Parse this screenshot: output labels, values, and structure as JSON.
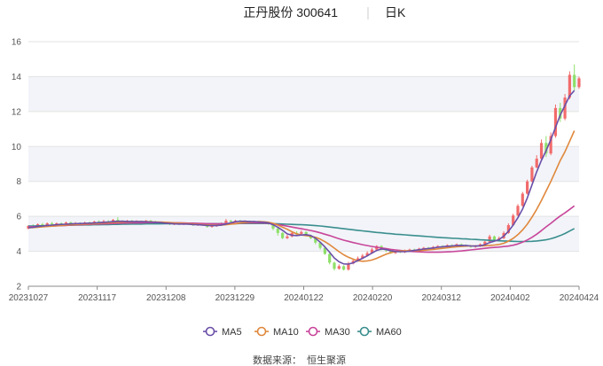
{
  "header": {
    "stock_label": "正丹股份 300641",
    "period_label": "日K"
  },
  "source": {
    "label": "数据来源：",
    "name": "恒生聚源"
  },
  "colors": {
    "up": "#f26b6b",
    "down": "#8ee06a",
    "ma5": "#6a4fa8",
    "ma10": "#e0883c",
    "ma30": "#c8469a",
    "ma60": "#3a8e8e",
    "grid": "#e3e3e3",
    "band": "#f2f4f9"
  },
  "chart_data": {
    "type": "candlestick",
    "ylim": [
      2,
      16
    ],
    "yticks": [
      2,
      4,
      6,
      8,
      10,
      12,
      14,
      16
    ],
    "xtick_labels": [
      "20231027",
      "20231117",
      "20231208",
      "20231229",
      "20240122",
      "20240220",
      "20240312",
      "20240402",
      "20240424"
    ],
    "legend": [
      "MA5",
      "MA10",
      "MA30",
      "MA60"
    ],
    "candles": [
      {
        "o": 5.3,
        "c": 5.45,
        "h": 5.5,
        "l": 5.25
      },
      {
        "o": 5.45,
        "c": 5.4,
        "h": 5.55,
        "l": 5.35
      },
      {
        "o": 5.4,
        "c": 5.55,
        "h": 5.6,
        "l": 5.35
      },
      {
        "o": 5.55,
        "c": 5.5,
        "h": 5.62,
        "l": 5.45
      },
      {
        "o": 5.5,
        "c": 5.6,
        "h": 5.65,
        "l": 5.45
      },
      {
        "o": 5.6,
        "c": 5.55,
        "h": 5.68,
        "l": 5.5
      },
      {
        "o": 5.55,
        "c": 5.6,
        "h": 5.65,
        "l": 5.5
      },
      {
        "o": 5.6,
        "c": 5.58,
        "h": 5.66,
        "l": 5.52
      },
      {
        "o": 5.58,
        "c": 5.65,
        "h": 5.7,
        "l": 5.52
      },
      {
        "o": 5.65,
        "c": 5.6,
        "h": 5.7,
        "l": 5.55
      },
      {
        "o": 5.6,
        "c": 5.62,
        "h": 5.68,
        "l": 5.55
      },
      {
        "o": 5.62,
        "c": 5.58,
        "h": 5.66,
        "l": 5.52
      },
      {
        "o": 5.58,
        "c": 5.65,
        "h": 5.7,
        "l": 5.55
      },
      {
        "o": 5.65,
        "c": 5.62,
        "h": 5.7,
        "l": 5.58
      },
      {
        "o": 5.62,
        "c": 5.7,
        "h": 5.75,
        "l": 5.58
      },
      {
        "o": 5.7,
        "c": 5.65,
        "h": 5.78,
        "l": 5.6
      },
      {
        "o": 5.65,
        "c": 5.72,
        "h": 5.8,
        "l": 5.6
      },
      {
        "o": 5.72,
        "c": 5.68,
        "h": 5.78,
        "l": 5.62
      },
      {
        "o": 5.68,
        "c": 5.8,
        "h": 5.85,
        "l": 5.65
      },
      {
        "o": 5.8,
        "c": 5.72,
        "h": 5.95,
        "l": 5.68
      },
      {
        "o": 5.72,
        "c": 5.7,
        "h": 5.78,
        "l": 5.65
      },
      {
        "o": 5.7,
        "c": 5.75,
        "h": 5.8,
        "l": 5.65
      },
      {
        "o": 5.75,
        "c": 5.7,
        "h": 5.8,
        "l": 5.65
      },
      {
        "o": 5.7,
        "c": 5.72,
        "h": 5.78,
        "l": 5.65
      },
      {
        "o": 5.72,
        "c": 5.68,
        "h": 5.76,
        "l": 5.62
      },
      {
        "o": 5.68,
        "c": 5.75,
        "h": 5.8,
        "l": 5.62
      },
      {
        "o": 5.75,
        "c": 5.7,
        "h": 5.8,
        "l": 5.65
      },
      {
        "o": 5.7,
        "c": 5.65,
        "h": 5.75,
        "l": 5.6
      },
      {
        "o": 5.65,
        "c": 5.62,
        "h": 5.7,
        "l": 5.55
      },
      {
        "o": 5.62,
        "c": 5.6,
        "h": 5.68,
        "l": 5.55
      },
      {
        "o": 5.6,
        "c": 5.55,
        "h": 5.65,
        "l": 5.5
      },
      {
        "o": 5.55,
        "c": 5.58,
        "h": 5.64,
        "l": 5.5
      },
      {
        "o": 5.58,
        "c": 5.55,
        "h": 5.62,
        "l": 5.5
      },
      {
        "o": 5.55,
        "c": 5.6,
        "h": 5.65,
        "l": 5.5
      },
      {
        "o": 5.6,
        "c": 5.55,
        "h": 5.65,
        "l": 5.5
      },
      {
        "o": 5.55,
        "c": 5.5,
        "h": 5.6,
        "l": 5.45
      },
      {
        "o": 5.5,
        "c": 5.55,
        "h": 5.6,
        "l": 5.45
      },
      {
        "o": 5.55,
        "c": 5.5,
        "h": 5.6,
        "l": 5.45
      },
      {
        "o": 5.5,
        "c": 5.4,
        "h": 5.55,
        "l": 5.35
      },
      {
        "o": 5.4,
        "c": 5.45,
        "h": 5.5,
        "l": 5.35
      },
      {
        "o": 5.45,
        "c": 5.5,
        "h": 5.55,
        "l": 5.4
      },
      {
        "o": 5.5,
        "c": 5.6,
        "h": 5.65,
        "l": 5.45
      },
      {
        "o": 5.6,
        "c": 5.75,
        "h": 5.85,
        "l": 5.55
      },
      {
        "o": 5.75,
        "c": 5.7,
        "h": 5.8,
        "l": 5.65
      },
      {
        "o": 5.7,
        "c": 5.75,
        "h": 5.8,
        "l": 5.65
      },
      {
        "o": 5.75,
        "c": 5.7,
        "h": 5.8,
        "l": 5.65
      },
      {
        "o": 5.7,
        "c": 5.72,
        "h": 5.78,
        "l": 5.65
      },
      {
        "o": 5.72,
        "c": 5.68,
        "h": 5.76,
        "l": 5.62
      },
      {
        "o": 5.68,
        "c": 5.7,
        "h": 5.75,
        "l": 5.62
      },
      {
        "o": 5.7,
        "c": 5.65,
        "h": 5.75,
        "l": 5.6
      },
      {
        "o": 5.65,
        "c": 5.6,
        "h": 5.7,
        "l": 5.55
      },
      {
        "o": 5.6,
        "c": 5.58,
        "h": 5.66,
        "l": 5.52
      },
      {
        "o": 5.58,
        "c": 5.3,
        "h": 5.6,
        "l": 5.2
      },
      {
        "o": 5.3,
        "c": 5.05,
        "h": 5.35,
        "l": 4.9
      },
      {
        "o": 5.05,
        "c": 4.75,
        "h": 5.1,
        "l": 4.7
      },
      {
        "o": 4.75,
        "c": 4.85,
        "h": 4.95,
        "l": 4.7
      },
      {
        "o": 4.85,
        "c": 5.05,
        "h": 5.15,
        "l": 4.8
      },
      {
        "o": 5.05,
        "c": 5.0,
        "h": 5.15,
        "l": 4.95
      },
      {
        "o": 5.0,
        "c": 5.1,
        "h": 5.2,
        "l": 4.95
      },
      {
        "o": 5.1,
        "c": 4.9,
        "h": 5.15,
        "l": 4.85
      },
      {
        "o": 4.9,
        "c": 4.75,
        "h": 4.95,
        "l": 4.7
      },
      {
        "o": 4.75,
        "c": 4.5,
        "h": 4.8,
        "l": 4.4
      },
      {
        "o": 4.5,
        "c": 4.2,
        "h": 4.55,
        "l": 4.1
      },
      {
        "o": 4.2,
        "c": 3.85,
        "h": 4.25,
        "l": 3.8
      },
      {
        "o": 3.85,
        "c": 3.35,
        "h": 3.9,
        "l": 3.25
      },
      {
        "o": 3.35,
        "c": 3.0,
        "h": 3.4,
        "l": 2.9
      },
      {
        "o": 3.0,
        "c": 3.15,
        "h": 3.25,
        "l": 2.95
      },
      {
        "o": 3.15,
        "c": 2.95,
        "h": 3.2,
        "l": 2.9
      },
      {
        "o": 2.95,
        "c": 3.3,
        "h": 3.4,
        "l": 2.9
      },
      {
        "o": 3.3,
        "c": 3.45,
        "h": 3.55,
        "l": 3.25
      },
      {
        "o": 3.45,
        "c": 3.6,
        "h": 3.7,
        "l": 3.4
      },
      {
        "o": 3.6,
        "c": 3.75,
        "h": 3.85,
        "l": 3.55
      },
      {
        "o": 3.75,
        "c": 3.9,
        "h": 4.0,
        "l": 3.7
      },
      {
        "o": 3.9,
        "c": 4.1,
        "h": 4.2,
        "l": 3.85
      },
      {
        "o": 4.1,
        "c": 4.3,
        "h": 4.35,
        "l": 4.05
      },
      {
        "o": 4.3,
        "c": 4.15,
        "h": 4.35,
        "l": 4.05
      },
      {
        "o": 4.15,
        "c": 4.05,
        "h": 4.2,
        "l": 3.95
      },
      {
        "o": 4.05,
        "c": 3.9,
        "h": 4.1,
        "l": 3.85
      },
      {
        "o": 3.9,
        "c": 4.0,
        "h": 4.05,
        "l": 3.85
      },
      {
        "o": 4.0,
        "c": 3.95,
        "h": 4.05,
        "l": 3.9
      },
      {
        "o": 3.95,
        "c": 4.05,
        "h": 4.1,
        "l": 3.9
      },
      {
        "o": 4.05,
        "c": 4.1,
        "h": 4.15,
        "l": 4.0
      },
      {
        "o": 4.1,
        "c": 4.05,
        "h": 4.15,
        "l": 4.0
      },
      {
        "o": 4.05,
        "c": 4.15,
        "h": 4.2,
        "l": 4.0
      },
      {
        "o": 4.15,
        "c": 4.2,
        "h": 4.25,
        "l": 4.1
      },
      {
        "o": 4.2,
        "c": 4.15,
        "h": 4.25,
        "l": 4.1
      },
      {
        "o": 4.15,
        "c": 4.25,
        "h": 4.3,
        "l": 4.1
      },
      {
        "o": 4.25,
        "c": 4.3,
        "h": 4.35,
        "l": 4.2
      },
      {
        "o": 4.3,
        "c": 4.25,
        "h": 4.35,
        "l": 4.2
      },
      {
        "o": 4.25,
        "c": 4.35,
        "h": 4.4,
        "l": 4.2
      },
      {
        "o": 4.35,
        "c": 4.3,
        "h": 4.4,
        "l": 4.25
      },
      {
        "o": 4.3,
        "c": 4.4,
        "h": 4.45,
        "l": 4.25
      },
      {
        "o": 4.4,
        "c": 4.35,
        "h": 4.45,
        "l": 4.3
      },
      {
        "o": 4.35,
        "c": 4.3,
        "h": 4.4,
        "l": 4.25
      },
      {
        "o": 4.3,
        "c": 4.25,
        "h": 4.35,
        "l": 4.2
      },
      {
        "o": 4.25,
        "c": 4.3,
        "h": 4.35,
        "l": 4.2
      },
      {
        "o": 4.3,
        "c": 4.4,
        "h": 4.45,
        "l": 4.25
      },
      {
        "o": 4.4,
        "c": 4.55,
        "h": 4.6,
        "l": 4.35
      },
      {
        "o": 4.55,
        "c": 4.85,
        "h": 4.95,
        "l": 4.5
      },
      {
        "o": 4.85,
        "c": 4.6,
        "h": 4.9,
        "l": 4.55
      },
      {
        "o": 4.6,
        "c": 4.75,
        "h": 4.85,
        "l": 4.55
      },
      {
        "o": 4.75,
        "c": 5.05,
        "h": 5.15,
        "l": 4.7
      },
      {
        "o": 5.05,
        "c": 5.5,
        "h": 5.6,
        "l": 5.0
      },
      {
        "o": 5.5,
        "c": 6.05,
        "h": 6.15,
        "l": 5.45
      },
      {
        "o": 6.05,
        "c": 6.6,
        "h": 6.7,
        "l": 6.0
      },
      {
        "o": 6.6,
        "c": 7.3,
        "h": 7.4,
        "l": 6.55
      },
      {
        "o": 7.3,
        "c": 8.0,
        "h": 8.1,
        "l": 7.25
      },
      {
        "o": 8.0,
        "c": 8.8,
        "h": 8.9,
        "l": 7.95
      },
      {
        "o": 8.8,
        "c": 9.3,
        "h": 9.5,
        "l": 8.75
      },
      {
        "o": 9.3,
        "c": 10.2,
        "h": 10.4,
        "l": 9.2
      },
      {
        "o": 10.2,
        "c": 9.6,
        "h": 10.6,
        "l": 9.4
      },
      {
        "o": 9.6,
        "c": 10.6,
        "h": 10.8,
        "l": 9.5
      },
      {
        "o": 10.6,
        "c": 12.2,
        "h": 12.4,
        "l": 10.5
      },
      {
        "o": 12.2,
        "c": 11.6,
        "h": 12.5,
        "l": 11.4
      },
      {
        "o": 11.6,
        "c": 12.8,
        "h": 13.0,
        "l": 11.5
      },
      {
        "o": 12.8,
        "c": 14.1,
        "h": 14.3,
        "l": 12.7
      },
      {
        "o": 14.1,
        "c": 13.4,
        "h": 14.7,
        "l": 13.2
      },
      {
        "o": 13.4,
        "c": 13.9,
        "h": 14.0,
        "l": 13.3
      }
    ],
    "ma_lines": {
      "MA5": [
        5.35,
        5.38,
        5.42,
        5.45,
        5.48,
        5.5,
        5.52,
        5.54,
        5.55,
        5.57,
        5.58,
        5.59,
        5.6,
        5.61,
        5.62,
        5.64,
        5.66,
        5.68,
        5.7,
        5.72,
        5.72,
        5.71,
        5.71,
        5.7,
        5.7,
        5.69,
        5.68,
        5.66,
        5.64,
        5.61,
        5.59,
        5.57,
        5.56,
        5.56,
        5.55,
        5.53,
        5.52,
        5.5,
        5.48,
        5.47,
        5.47,
        5.5,
        5.56,
        5.63,
        5.7,
        5.72,
        5.72,
        5.71,
        5.7,
        5.68,
        5.66,
        5.62,
        5.52,
        5.38,
        5.2,
        5.0,
        4.92,
        4.9,
        4.93,
        4.95,
        4.9,
        4.75,
        4.52,
        4.25,
        3.95,
        3.62,
        3.4,
        3.28,
        3.27,
        3.34,
        3.47,
        3.6,
        3.74,
        3.9,
        4.05,
        4.13,
        4.1,
        4.03,
        3.99,
        3.98,
        3.98,
        4.01,
        4.05,
        4.09,
        4.13,
        4.16,
        4.19,
        4.23,
        4.26,
        4.29,
        4.31,
        4.33,
        4.34,
        4.33,
        4.31,
        4.3,
        4.32,
        4.38,
        4.5,
        4.58,
        4.67,
        4.87,
        5.15,
        5.5,
        5.92,
        6.42,
        7.05,
        7.8,
        8.55,
        9.2,
        9.75,
        10.4,
        11.1,
        11.8,
        12.35,
        12.9,
        13.2
      ],
      "MA10": [
        5.35,
        5.36,
        5.38,
        5.4,
        5.42,
        5.44,
        5.46,
        5.48,
        5.5,
        5.52,
        5.53,
        5.55,
        5.56,
        5.57,
        5.58,
        5.6,
        5.62,
        5.63,
        5.65,
        5.66,
        5.67,
        5.68,
        5.69,
        5.7,
        5.7,
        5.7,
        5.69,
        5.68,
        5.67,
        5.66,
        5.64,
        5.62,
        5.61,
        5.6,
        5.58,
        5.56,
        5.54,
        5.52,
        5.51,
        5.5,
        5.49,
        5.5,
        5.52,
        5.55,
        5.58,
        5.62,
        5.65,
        5.68,
        5.69,
        5.7,
        5.69,
        5.66,
        5.6,
        5.5,
        5.38,
        5.26,
        5.12,
        5.0,
        4.93,
        4.9,
        4.86,
        4.8,
        4.7,
        4.55,
        4.38,
        4.18,
        3.98,
        3.8,
        3.66,
        3.55,
        3.46,
        3.43,
        3.45,
        3.5,
        3.6,
        3.72,
        3.83,
        3.92,
        3.98,
        4.02,
        4.03,
        4.04,
        4.04,
        4.04,
        4.06,
        4.08,
        4.11,
        4.14,
        4.17,
        4.2,
        4.23,
        4.26,
        4.28,
        4.3,
        4.31,
        4.31,
        4.31,
        4.32,
        4.34,
        4.36,
        4.39,
        4.46,
        4.58,
        4.74,
        4.95,
        5.22,
        5.55,
        5.95,
        6.4,
        6.9,
        7.45,
        8.0,
        8.6,
        9.2,
        9.7,
        10.3,
        10.9
      ],
      "MA30": [
        5.4,
        5.41,
        5.42,
        5.43,
        5.44,
        5.45,
        5.46,
        5.47,
        5.48,
        5.5,
        5.51,
        5.52,
        5.53,
        5.54,
        5.55,
        5.56,
        5.57,
        5.58,
        5.59,
        5.6,
        5.61,
        5.62,
        5.62,
        5.63,
        5.63,
        5.64,
        5.64,
        5.64,
        5.64,
        5.64,
        5.64,
        5.63,
        5.63,
        5.62,
        5.61,
        5.61,
        5.6,
        5.59,
        5.58,
        5.58,
        5.57,
        5.57,
        5.58,
        5.59,
        5.6,
        5.61,
        5.62,
        5.63,
        5.63,
        5.63,
        5.62,
        5.6,
        5.57,
        5.53,
        5.49,
        5.44,
        5.39,
        5.34,
        5.29,
        5.24,
        5.19,
        5.13,
        5.06,
        4.98,
        4.9,
        4.81,
        4.72,
        4.64,
        4.57,
        4.5,
        4.44,
        4.38,
        4.33,
        4.28,
        4.23,
        4.19,
        4.15,
        4.11,
        4.08,
        4.05,
        4.02,
        4.0,
        3.98,
        3.97,
        3.96,
        3.95,
        3.95,
        3.95,
        3.96,
        3.97,
        3.98,
        4.0,
        4.02,
        4.05,
        4.08,
        4.11,
        4.14,
        4.17,
        4.2,
        4.22,
        4.24,
        4.27,
        4.3,
        4.35,
        4.42,
        4.52,
        4.65,
        4.8,
        4.98,
        5.18,
        5.4,
        5.6,
        5.82,
        6.02,
        6.2,
        6.4,
        6.6
      ],
      "MA60": [
        5.45,
        5.45,
        5.46,
        5.46,
        5.47,
        5.47,
        5.48,
        5.48,
        5.49,
        5.49,
        5.5,
        5.5,
        5.51,
        5.51,
        5.52,
        5.52,
        5.53,
        5.53,
        5.54,
        5.54,
        5.55,
        5.55,
        5.56,
        5.56,
        5.56,
        5.57,
        5.57,
        5.57,
        5.57,
        5.58,
        5.58,
        5.58,
        5.58,
        5.58,
        5.58,
        5.58,
        5.58,
        5.58,
        5.58,
        5.58,
        5.58,
        5.58,
        5.58,
        5.58,
        5.58,
        5.59,
        5.59,
        5.59,
        5.59,
        5.59,
        5.59,
        5.59,
        5.58,
        5.57,
        5.56,
        5.55,
        5.54,
        5.53,
        5.52,
        5.51,
        5.49,
        5.47,
        5.45,
        5.42,
        5.39,
        5.36,
        5.33,
        5.29,
        5.26,
        5.23,
        5.2,
        5.17,
        5.14,
        5.11,
        5.08,
        5.06,
        5.03,
        5.01,
        4.98,
        4.96,
        4.94,
        4.92,
        4.9,
        4.88,
        4.86,
        4.84,
        4.82,
        4.8,
        4.78,
        4.77,
        4.75,
        4.74,
        4.72,
        4.71,
        4.69,
        4.68,
        4.66,
        4.65,
        4.63,
        4.62,
        4.6,
        4.59,
        4.58,
        4.57,
        4.56,
        4.56,
        4.56,
        4.57,
        4.59,
        4.62,
        4.66,
        4.72,
        4.8,
        4.9,
        5.02,
        5.16,
        5.3
      ]
    }
  }
}
